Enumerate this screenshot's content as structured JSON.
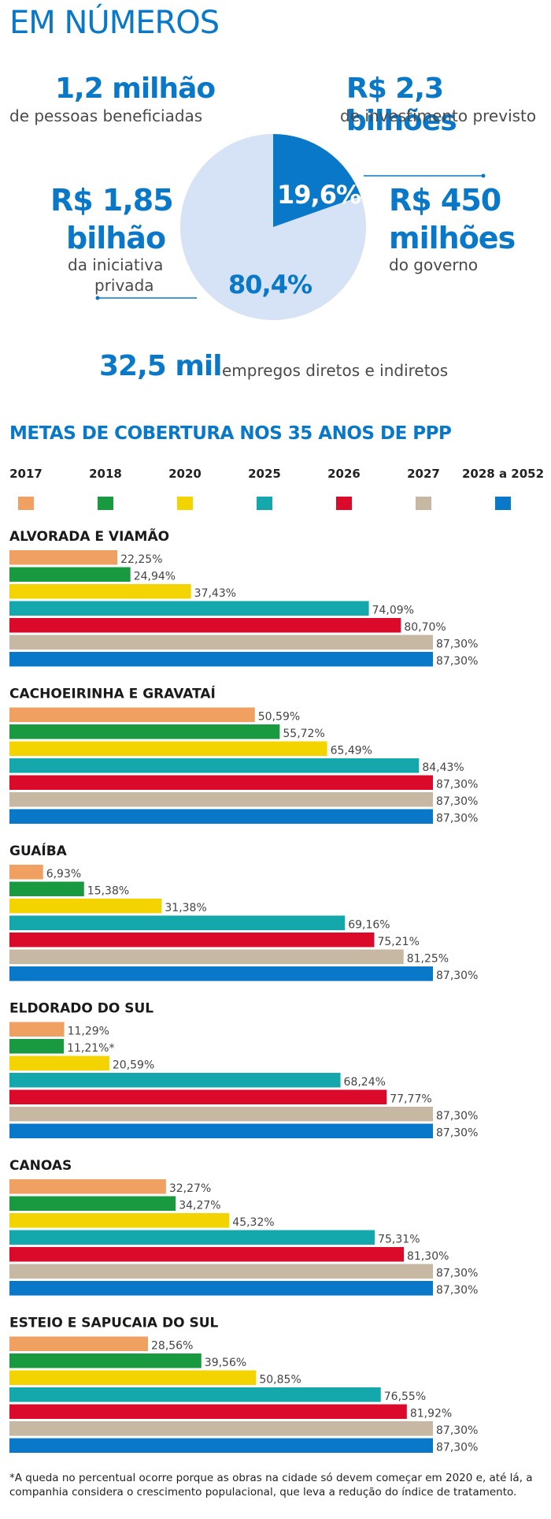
{
  "header": {
    "title": "EM NÚMEROS"
  },
  "stats": {
    "beneficiaries_value": "1,2 milhão",
    "beneficiaries_label": "de pessoas beneficiadas",
    "investment_value": "R$ 2,3 bilhões",
    "investment_label": "de investimento previsto",
    "private_value_line1": "R$ 1,85",
    "private_value_line2": "bilhão",
    "private_label_line1": "da iniciativa",
    "private_label_line2": "privada",
    "government_value_line1": "R$ 450",
    "government_value_line2": "milhões",
    "government_label": "do governo",
    "jobs_value": "32,5 mil",
    "jobs_label": "empregos diretos e indiretos"
  },
  "section_title": "METAS DE COBERTURA NOS 35 ANOS DE PPP",
  "footnote": "*A queda no percentual ocorre porque as obras na cidade só devem começar em 2020 e, até lá, a companhia considera o crescimento populacional, que leva a redução do índice de tratamento.",
  "colors": {
    "blue": "#0a78c8",
    "pie_light": "#d6e2f5",
    "s2017": "#f0a060",
    "s2018": "#1a9a40",
    "s2020": "#f4d400",
    "s2025": "#14a8ac",
    "s2026": "#dc0a2a",
    "s2027": "#c6b8a2",
    "s2028": "#0a78c8"
  },
  "chart_data": [
    {
      "type": "pie",
      "slices": [
        {
          "label": "19,6%",
          "value": 19.6
        },
        {
          "label": "80,4%",
          "value": 80.4
        }
      ]
    },
    {
      "type": "bar",
      "title": "METAS DE COBERTURA NOS 35 ANOS DE PPP",
      "legend": [
        "2017",
        "2018",
        "2020",
        "2025",
        "2026",
        "2027",
        "2028 a 2052"
      ],
      "xlim": [
        0,
        87.3
      ],
      "groups": [
        {
          "name": "ALVORADA E VIAMÃO",
          "values": [
            22.25,
            24.94,
            37.43,
            74.09,
            80.7,
            87.3,
            87.3
          ],
          "labels": [
            "22,25%",
            "24,94%",
            "37,43%",
            "74,09%",
            "80,70%",
            "87,30%",
            "87,30%"
          ]
        },
        {
          "name": "CACHOEIRINHA E GRAVATAÍ",
          "values": [
            50.59,
            55.72,
            65.49,
            84.43,
            87.3,
            87.3,
            87.3
          ],
          "labels": [
            "50,59%",
            "55,72%",
            "65,49%",
            "84,43%",
            "87,30%",
            "87,30%",
            "87,30%"
          ]
        },
        {
          "name": "GUAÍBA",
          "values": [
            6.93,
            15.38,
            31.38,
            69.16,
            75.21,
            81.25,
            87.3
          ],
          "labels": [
            "6,93%",
            "15,38%",
            "31,38%",
            "69,16%",
            "75,21%",
            "81,25%",
            "87,30%"
          ]
        },
        {
          "name": "ELDORADO DO SUL",
          "values": [
            11.29,
            11.21,
            20.59,
            68.24,
            77.77,
            87.3,
            87.3
          ],
          "labels": [
            "11,29%",
            "11,21%*",
            "20,59%",
            "68,24%",
            "77,77%",
            "87,30%",
            "87,30%"
          ]
        },
        {
          "name": "CANOAS",
          "values": [
            32.27,
            34.27,
            45.32,
            75.31,
            81.3,
            87.3,
            87.3
          ],
          "labels": [
            "32,27%",
            "34,27%",
            "45,32%",
            "75,31%",
            "81,30%",
            "87,30%",
            "87,30%"
          ]
        },
        {
          "name": "ESTEIO E SAPUCAIA DO SUL",
          "values": [
            28.56,
            39.56,
            50.85,
            76.55,
            81.92,
            87.3,
            87.3
          ],
          "labels": [
            "28,56%",
            "39,56%",
            "50,85%",
            "76,55%",
            "81,92%",
            "87,30%",
            "87,30%"
          ]
        }
      ]
    }
  ]
}
